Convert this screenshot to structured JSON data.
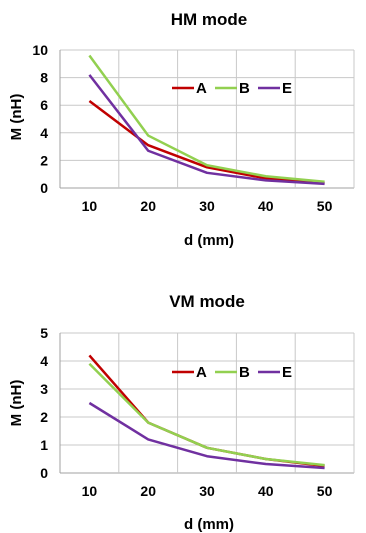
{
  "chart_data": [
    {
      "type": "line",
      "title": "HM mode",
      "xlabel": "d (mm)",
      "ylabel": "M (nH)",
      "x": [
        10,
        20,
        30,
        40,
        50
      ],
      "ylim": [
        0,
        10
      ],
      "yticks": [
        0,
        2,
        4,
        6,
        8,
        10
      ],
      "grid": true,
      "legend": "top-right",
      "series": [
        {
          "name": "A",
          "color": "#c00000",
          "values": [
            6.3,
            3.1,
            1.5,
            0.7,
            0.35
          ]
        },
        {
          "name": "B",
          "color": "#92d050",
          "values": [
            9.6,
            3.8,
            1.65,
            0.85,
            0.45
          ]
        },
        {
          "name": "E",
          "color": "#7030a0",
          "values": [
            8.2,
            2.7,
            1.1,
            0.55,
            0.3
          ]
        }
      ]
    },
    {
      "type": "line",
      "title": "VM mode",
      "xlabel": "d (mm)",
      "ylabel": "M (nH)",
      "x": [
        10,
        20,
        30,
        40,
        50
      ],
      "ylim": [
        0,
        5
      ],
      "yticks": [
        0,
        1,
        2,
        3,
        4,
        5
      ],
      "grid": true,
      "legend": "top-right",
      "series": [
        {
          "name": "A",
          "color": "#c00000",
          "values": [
            4.2,
            1.8,
            0.9,
            0.5,
            0.25
          ]
        },
        {
          "name": "B",
          "color": "#92d050",
          "values": [
            3.9,
            1.8,
            0.9,
            0.5,
            0.28
          ]
        },
        {
          "name": "E",
          "color": "#7030a0",
          "values": [
            2.5,
            1.2,
            0.6,
            0.32,
            0.18
          ]
        }
      ]
    }
  ]
}
